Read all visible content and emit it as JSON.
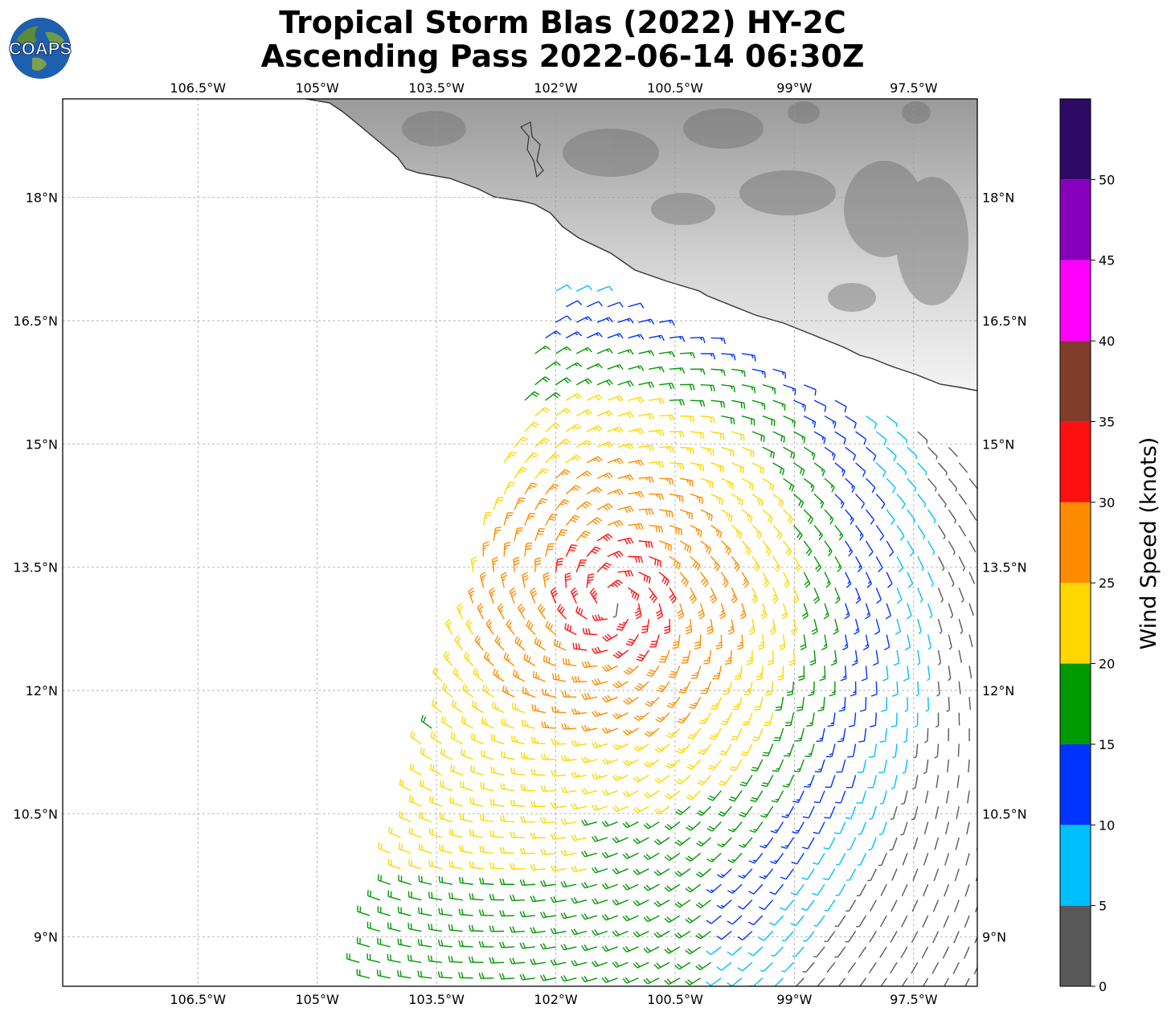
{
  "title": {
    "line1": "Tropical Storm Blas (2022) HY-2C",
    "line2": "Ascending Pass 2022-06-14 06:30Z"
  },
  "logo": {
    "text": "COAPS"
  },
  "map": {
    "lon_range": [
      -108.2,
      -96.7
    ],
    "lat_range": [
      8.4,
      19.2
    ],
    "lon_ticks": [
      {
        "value": -106.5,
        "label": "106.5°W"
      },
      {
        "value": -105.0,
        "label": "105°W"
      },
      {
        "value": -103.5,
        "label": "103.5°W"
      },
      {
        "value": -102.0,
        "label": "102°W"
      },
      {
        "value": -100.5,
        "label": "100.5°W"
      },
      {
        "value": -99.0,
        "label": "99°W"
      },
      {
        "value": -97.5,
        "label": "97.5°W"
      }
    ],
    "lat_ticks": [
      {
        "value": 18.0,
        "label": "18°N"
      },
      {
        "value": 16.5,
        "label": "16.5°N"
      },
      {
        "value": 15.0,
        "label": "15°N"
      },
      {
        "value": 13.5,
        "label": "13.5°N"
      },
      {
        "value": 12.0,
        "label": "12°N"
      },
      {
        "value": 10.5,
        "label": "10.5°N"
      },
      {
        "value": 9.0,
        "label": "9°N"
      }
    ],
    "storm_center": {
      "lon": -101.3,
      "lat": 13.1
    },
    "gridlines": true,
    "land_shading": "grayscale terrain"
  },
  "colorbar": {
    "label": "Wind Speed (knots)",
    "bins": [
      {
        "from": 0,
        "to": 5,
        "color": "#595959"
      },
      {
        "from": 5,
        "to": 10,
        "color": "#00bfff"
      },
      {
        "from": 10,
        "to": 15,
        "color": "#0033ff"
      },
      {
        "from": 15,
        "to": 20,
        "color": "#009900"
      },
      {
        "from": 20,
        "to": 25,
        "color": "#ffd700"
      },
      {
        "from": 25,
        "to": 30,
        "color": "#ff8c00"
      },
      {
        "from": 30,
        "to": 35,
        "color": "#ff1010"
      },
      {
        "from": 35,
        "to": 40,
        "color": "#7f3d2a"
      },
      {
        "from": 40,
        "to": 45,
        "color": "#ff00ff"
      },
      {
        "from": 45,
        "to": 50,
        "color": "#8800bb"
      },
      {
        "from": 50,
        "to": 55,
        "color": "#2e0a66"
      }
    ],
    "tick_labels": [
      "0",
      "5",
      "10",
      "15",
      "20",
      "25",
      "30",
      "35",
      "40",
      "45",
      "50"
    ]
  },
  "chart_data": {
    "type": "wind-barb map",
    "units": "knots",
    "barb_grid": {
      "lon_step": 0.26,
      "lat_step": 0.19
    },
    "swath": "ascending pass, right portion of map, approx. lon -104.5 to -96.7",
    "wind_field": "cyclonic circulation around storm center; max 30-35 kt SW of center; decreasing outward to 5-10 kt near coast and far east"
  }
}
